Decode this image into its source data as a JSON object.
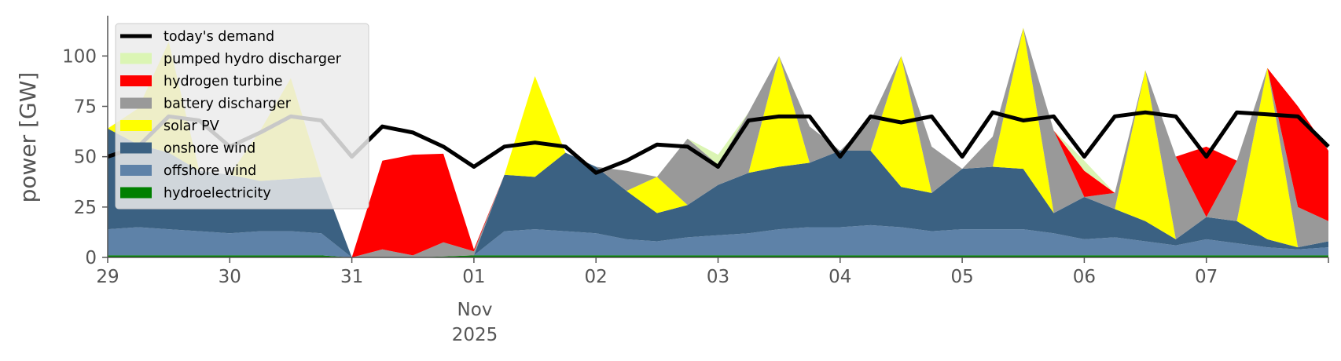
{
  "chart_data": {
    "type": "area",
    "stacked": true,
    "ylabel": "power [GW]",
    "ylim": [
      0,
      120
    ],
    "xlim": [
      "2025-10-29",
      "2025-11-08"
    ],
    "grid": false,
    "legend_position": "top-left",
    "x_ticks": [
      "29",
      "30",
      "31",
      "01",
      "02",
      "03",
      "04",
      "05",
      "06",
      "07"
    ],
    "x_tick_sub": [
      "Nov",
      "2025"
    ],
    "y_ticks": [
      "0",
      "25",
      "50",
      "75",
      "100"
    ],
    "y_tick_values": [
      0,
      25,
      50,
      75,
      100
    ],
    "x": [
      "10-29 00:00",
      "10-29 06:00",
      "10-29 12:00",
      "10-29 18:00",
      "10-30 00:00",
      "10-30 06:00",
      "10-30 12:00",
      "10-30 18:00",
      "10-31 00:00",
      "10-31 06:00",
      "10-31 12:00",
      "10-31 18:00",
      "11-01 00:00",
      "11-01 06:00",
      "11-01 12:00",
      "11-01 18:00",
      "11-02 00:00",
      "11-02 06:00",
      "11-02 12:00",
      "11-02 18:00",
      "11-03 00:00",
      "11-03 06:00",
      "11-03 12:00",
      "11-03 18:00",
      "11-04 00:00",
      "11-04 06:00",
      "11-04 12:00",
      "11-04 18:00",
      "11-05 00:00",
      "11-05 06:00",
      "11-05 12:00",
      "11-05 18:00",
      "11-06 00:00",
      "11-06 06:00",
      "11-06 12:00",
      "11-06 18:00",
      "11-07 00:00",
      "11-07 06:00",
      "11-07 12:00",
      "11-07 18:00",
      "11-08 00:00"
    ],
    "series": [
      {
        "name": "hydroelectricity",
        "color": "#008000",
        "values": [
          1,
          1,
          1,
          1,
          1,
          1,
          1,
          1,
          0,
          0,
          0,
          0.5,
          1,
          1,
          1,
          1,
          1,
          1,
          1,
          1,
          1,
          1,
          1,
          1,
          1,
          1,
          1,
          1,
          1,
          1,
          1,
          1,
          1,
          1,
          1,
          1,
          1,
          1,
          1,
          1,
          1
        ]
      },
      {
        "name": "offshore wind",
        "color": "#5e82a8",
        "values": [
          13,
          14,
          13,
          12,
          11,
          12,
          12,
          11,
          0,
          0,
          0,
          0,
          0,
          12,
          13,
          12,
          11,
          8,
          7,
          9,
          10,
          11,
          13,
          14,
          14,
          15,
          14,
          12,
          13,
          13,
          13,
          11,
          8,
          9,
          7,
          5,
          8,
          6,
          4,
          3,
          4
        ]
      },
      {
        "name": "onshore wind",
        "color": "#3b6182",
        "values": [
          50,
          41,
          38,
          30,
          29,
          25,
          26,
          28,
          0,
          0,
          0,
          0,
          0,
          28,
          26,
          39,
          33,
          24,
          14,
          16,
          25,
          30,
          31,
          32,
          38,
          37,
          20,
          19,
          30,
          31,
          30,
          10,
          21,
          14,
          10,
          3,
          11,
          11,
          4,
          1,
          3
        ]
      },
      {
        "name": "solar PV",
        "color": "#ffff00",
        "values": [
          0,
          18,
          55,
          0,
          0,
          25,
          50,
          0,
          0,
          0,
          0,
          0,
          0,
          0,
          50,
          0,
          0,
          0,
          18,
          0,
          0,
          0,
          55,
          0,
          0,
          0,
          65,
          0,
          0,
          0,
          70,
          0,
          0,
          0,
          75,
          0,
          0,
          0,
          85,
          0,
          0
        ]
      },
      {
        "name": "battery discharger",
        "color": "#999999",
        "values": [
          0,
          0,
          0,
          0,
          0,
          0,
          0,
          0,
          0,
          4,
          1,
          7,
          2,
          0,
          0,
          0,
          0,
          10,
          0,
          33,
          10,
          30,
          0,
          18,
          0,
          15,
          0,
          23,
          0,
          15,
          0,
          41,
          0,
          8,
          0,
          41,
          0,
          30,
          0,
          20,
          10
        ]
      },
      {
        "name": "hydrogen turbine",
        "color": "#ff0000",
        "values": [
          0,
          0,
          0,
          0,
          0,
          0,
          0,
          0,
          0,
          44,
          50,
          44,
          1,
          0,
          0,
          0,
          0,
          0,
          0,
          0,
          0,
          0,
          0,
          0,
          0,
          0,
          0,
          0,
          0,
          0,
          0,
          0,
          13,
          0,
          0,
          0,
          35,
          0,
          0,
          50,
          35
        ]
      },
      {
        "name": "pumped hydro discharger",
        "color": "#dbf5b4",
        "values": [
          0,
          0,
          0,
          0,
          0,
          0,
          0,
          0,
          0,
          0,
          0,
          0,
          0,
          0,
          0,
          0,
          0,
          0,
          0,
          0,
          5,
          0,
          0,
          0,
          0,
          0,
          0,
          0,
          0,
          0,
          0,
          0,
          5,
          0,
          0,
          0,
          0,
          0,
          0,
          0,
          0
        ]
      }
    ],
    "demand": {
      "name": "today's demand",
      "color": "#000000",
      "values": [
        50,
        55,
        70,
        68,
        55,
        62,
        70,
        68,
        50,
        65,
        62,
        55,
        45,
        55,
        57,
        55,
        42,
        48,
        56,
        55,
        45,
        68,
        70,
        70,
        50,
        70,
        67,
        70,
        50,
        72,
        68,
        70,
        50,
        70,
        72,
        70,
        50,
        72,
        71,
        70,
        55
      ]
    },
    "gap_ranges": [
      [
        "10-30 14:00",
        "10-31 00:00"
      ]
    ]
  }
}
